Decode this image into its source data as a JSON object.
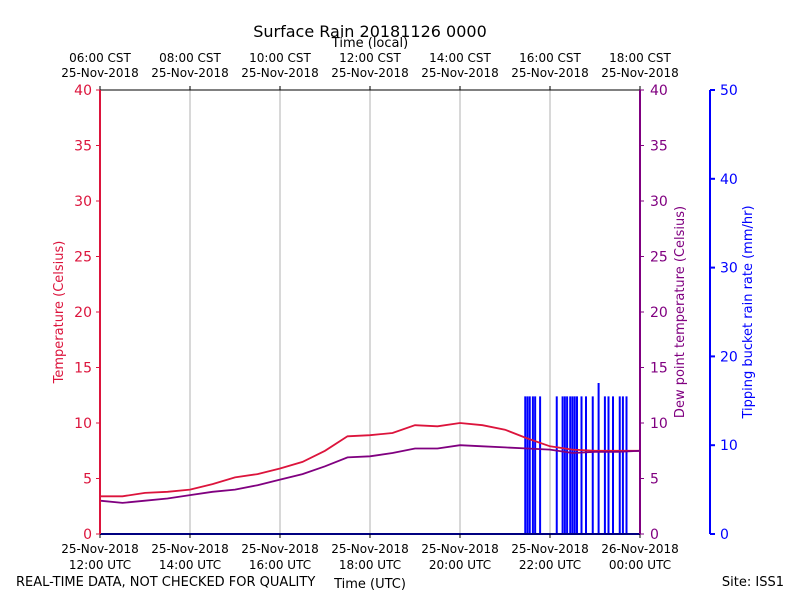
{
  "title": "Surface Rain 20181126 0000",
  "footer": {
    "left_note": "REAL-TIME DATA, NOT CHECKED FOR QUALITY",
    "site": "Site: ISS1"
  },
  "colors": {
    "temperature": "#dc143c",
    "dewpoint": "#800080",
    "rain": "#0000ff",
    "grid": "#b0b0b0"
  },
  "chart_data": {
    "type": "line",
    "title": "Surface Rain 20181126 0000",
    "x_bottom": {
      "label": "Time (UTC)",
      "range_hours": [
        12,
        24
      ],
      "ticks": [
        {
          "hour": 12,
          "line1": "25-Nov-2018",
          "line2": "12:00 UTC"
        },
        {
          "hour": 14,
          "line1": "25-Nov-2018",
          "line2": "14:00 UTC"
        },
        {
          "hour": 16,
          "line1": "25-Nov-2018",
          "line2": "16:00 UTC"
        },
        {
          "hour": 18,
          "line1": "25-Nov-2018",
          "line2": "18:00 UTC"
        },
        {
          "hour": 20,
          "line1": "25-Nov-2018",
          "line2": "20:00 UTC"
        },
        {
          "hour": 22,
          "line1": "25-Nov-2018",
          "line2": "22:00 UTC"
        },
        {
          "hour": 24,
          "line1": "26-Nov-2018",
          "line2": "00:00 UTC"
        }
      ]
    },
    "x_top": {
      "label": "Time (local)",
      "ticks": [
        {
          "hour": 12,
          "line1": "06:00 CST",
          "line2": "25-Nov-2018"
        },
        {
          "hour": 14,
          "line1": "08:00 CST",
          "line2": "25-Nov-2018"
        },
        {
          "hour": 16,
          "line1": "10:00 CST",
          "line2": "25-Nov-2018"
        },
        {
          "hour": 18,
          "line1": "12:00 CST",
          "line2": "25-Nov-2018"
        },
        {
          "hour": 20,
          "line1": "14:00 CST",
          "line2": "25-Nov-2018"
        },
        {
          "hour": 22,
          "line1": "16:00 CST",
          "line2": "25-Nov-2018"
        },
        {
          "hour": 24,
          "line1": "18:00 CST",
          "line2": "25-Nov-2018"
        }
      ]
    },
    "y_left": {
      "label": "Temperature (Celsius)",
      "range": [
        0,
        40
      ],
      "ticks": [
        0,
        5,
        10,
        15,
        20,
        25,
        30,
        35,
        40
      ]
    },
    "y_right1": {
      "label": "Dew point temperature (Celsius)",
      "range": [
        0,
        40
      ],
      "ticks": [
        0,
        5,
        10,
        15,
        20,
        25,
        30,
        35,
        40
      ]
    },
    "y_right2": {
      "label": "Tipping bucket rain rate (mm/hr)",
      "range": [
        0,
        50
      ],
      "ticks": [
        0,
        10,
        20,
        30,
        40,
        50
      ]
    },
    "grid": "vertical",
    "series": [
      {
        "name": "Temperature (Celsius)",
        "x": [
          12.0,
          12.5,
          13.0,
          13.5,
          14.0,
          14.5,
          15.0,
          15.5,
          16.0,
          16.5,
          17.0,
          17.5,
          18.0,
          18.5,
          19.0,
          19.5,
          20.0,
          20.5,
          21.0,
          21.5,
          22.0,
          22.5,
          23.0,
          23.5,
          24.0
        ],
        "y": [
          3.4,
          3.4,
          3.7,
          3.8,
          4.0,
          4.5,
          5.1,
          5.4,
          5.9,
          6.5,
          7.5,
          8.8,
          8.9,
          9.1,
          9.8,
          9.7,
          10.0,
          9.8,
          9.4,
          8.6,
          7.9,
          7.6,
          7.5,
          7.5,
          7.5
        ]
      },
      {
        "name": "Dew point temperature (Celsius)",
        "x": [
          12.0,
          12.5,
          13.0,
          13.5,
          14.0,
          14.5,
          15.0,
          15.5,
          16.0,
          16.5,
          17.0,
          17.5,
          18.0,
          18.5,
          19.0,
          19.5,
          20.0,
          20.5,
          21.0,
          21.5,
          22.0,
          22.5,
          23.0,
          23.5,
          24.0
        ],
        "y": [
          3.0,
          2.8,
          3.0,
          3.2,
          3.5,
          3.8,
          4.0,
          4.4,
          4.9,
          5.4,
          6.1,
          6.9,
          7.0,
          7.3,
          7.7,
          7.7,
          8.0,
          7.9,
          7.8,
          7.7,
          7.6,
          7.3,
          7.4,
          7.4,
          7.5
        ]
      },
      {
        "name": "Tipping bucket rain rate (mm/hr)",
        "style": "spikes",
        "baseline": 0,
        "spike_times": [
          21.45,
          21.5,
          21.55,
          21.62,
          21.67,
          21.78,
          22.15,
          22.28,
          22.33,
          22.38,
          22.45,
          22.5,
          22.55,
          22.6,
          22.7,
          22.8,
          22.95,
          23.08,
          23.22,
          23.3,
          23.4,
          23.55,
          23.62,
          23.7
        ],
        "spike_values": [
          15.5,
          15.5,
          15.5,
          15.5,
          15.5,
          15.5,
          15.5,
          15.5,
          15.5,
          15.5,
          15.5,
          15.5,
          15.5,
          15.5,
          15.5,
          15.5,
          15.5,
          17.0,
          15.5,
          15.5,
          15.5,
          15.5,
          15.5,
          15.5
        ]
      }
    ]
  }
}
